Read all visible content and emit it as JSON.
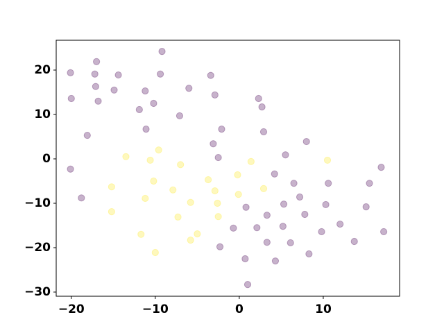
{
  "chart_data": {
    "type": "scatter",
    "xlim": [
      -21.8,
      19.09
    ],
    "ylim": [
      -30.94,
      26.72
    ],
    "xticks": [
      {
        "value": -20,
        "label": "−20"
      },
      {
        "value": -10,
        "label": "−10"
      },
      0,
      10
    ],
    "yticks": [
      {
        "value": -30,
        "label": "−30"
      },
      {
        "value": -20,
        "label": "−20"
      },
      {
        "value": -10,
        "label": "−10"
      },
      0,
      10,
      20
    ],
    "grid": false,
    "alpha": 0.3,
    "series": [
      {
        "color": "#440154",
        "x": [
          -20.1,
          -20.0,
          -20.1,
          -17.0,
          -17.2,
          -17.1,
          -16.8,
          -18.1,
          -18.8,
          -14.4,
          -14.9,
          -9.2,
          -9.4,
          -11.2,
          -10.2,
          -11.9,
          -11.1,
          -7.1,
          -6.0,
          -3.4,
          -2.9,
          -2.1,
          -3.1,
          -2.5,
          2.3,
          2.7,
          2.9,
          8.0,
          5.5,
          4.2,
          6.5,
          7.2,
          5.3,
          3.3,
          0.8,
          7.8,
          10.6,
          10.3,
          5.2,
          2.1,
          -0.7,
          -2.3,
          3.3,
          6.1,
          8.3,
          9.8,
          12.0,
          13.7,
          15.1,
          15.5,
          16.9,
          17.2,
          0.7,
          4.3,
          1.0
        ],
        "values": [
          19.4,
          13.6,
          -2.3,
          21.9,
          19.1,
          16.3,
          13.0,
          5.3,
          -8.8,
          18.9,
          15.5,
          24.2,
          19.1,
          15.3,
          12.5,
          11.1,
          6.7,
          9.7,
          15.9,
          18.8,
          14.4,
          6.7,
          3.4,
          0.3,
          13.6,
          11.7,
          6.1,
          3.9,
          0.9,
          -3.4,
          -5.5,
          -8.6,
          -10.2,
          -12.7,
          -10.9,
          -12.5,
          -5.5,
          -10.3,
          -15.2,
          -15.5,
          -15.6,
          -19.8,
          -18.8,
          -18.9,
          -21.4,
          -16.4,
          -14.7,
          -18.6,
          -10.8,
          -5.5,
          -1.9,
          -16.4,
          -22.5,
          -23.0,
          -28.3
        ]
      },
      {
        "color": "#fde725",
        "x": [
          -13.5,
          -9.6,
          -10.6,
          -7.0,
          -15.2,
          -15.2,
          -10.2,
          -7.9,
          -11.2,
          -5.8,
          -7.3,
          -3.7,
          -2.9,
          -2.6,
          -2.5,
          -5.0,
          -5.8,
          -11.7,
          -10.0,
          -0.2,
          -0.1,
          1.4,
          2.9,
          10.5
        ],
        "values": [
          0.5,
          2.0,
          -0.3,
          -1.3,
          -6.3,
          -11.9,
          -5.0,
          -7.0,
          -8.9,
          -9.8,
          -13.1,
          -4.7,
          -7.2,
          -10.0,
          -13.0,
          -16.9,
          -18.3,
          -17.0,
          -21.1,
          -3.6,
          -8.0,
          -0.6,
          -6.7,
          -0.3
        ]
      }
    ]
  }
}
